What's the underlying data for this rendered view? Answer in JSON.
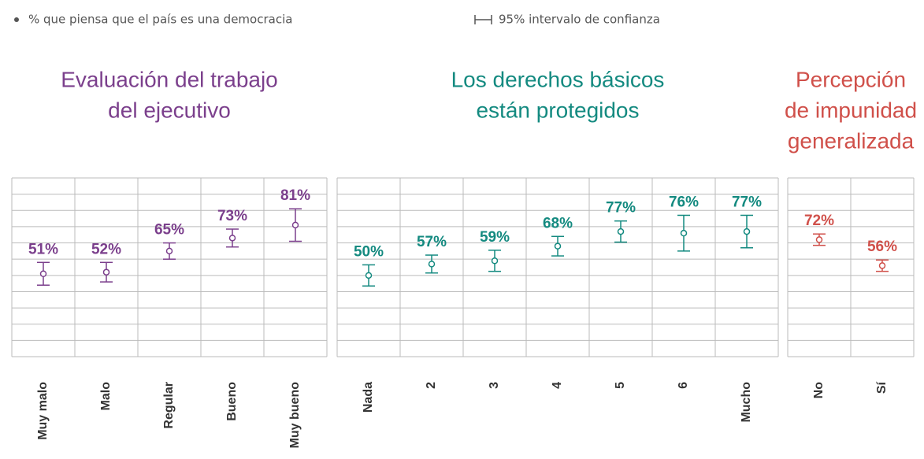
{
  "legend": {
    "point": "% que piensa que el país es una democracia",
    "interval": "95% intervalo de confianza"
  },
  "chart_data": [
    {
      "type": "errorbar",
      "title": [
        "Evaluación del trabajo",
        "del ejecutivo"
      ],
      "color": "#7b3f8c",
      "categories": [
        "Muy malo",
        "Malo",
        "Regular",
        "Bueno",
        "Muy bueno"
      ],
      "values": [
        51,
        52,
        65,
        73,
        81
      ],
      "errors": [
        7,
        6,
        5,
        5.5,
        10
      ],
      "value_labels": [
        "51%",
        "52%",
        "65%",
        "73%",
        "81%"
      ],
      "ylim": [
        0,
        110
      ],
      "yticks": [
        0,
        10,
        20,
        30,
        40,
        50,
        60,
        70,
        80,
        90,
        100,
        110
      ],
      "grid": true
    },
    {
      "type": "errorbar",
      "title": [
        "Los derechos básicos",
        "están protegidos"
      ],
      "color": "#148a80",
      "categories": [
        "Nada",
        "2",
        "3",
        "4",
        "5",
        "6",
        "Mucho"
      ],
      "values": [
        50,
        57,
        59,
        68,
        77,
        76,
        77
      ],
      "errors": [
        6.5,
        5.5,
        6.5,
        6,
        6.5,
        11,
        10
      ],
      "value_labels": [
        "50%",
        "57%",
        "59%",
        "68%",
        "77%",
        "76%",
        "77%"
      ],
      "ylim": [
        0,
        110
      ],
      "yticks": [
        0,
        10,
        20,
        30,
        40,
        50,
        60,
        70,
        80,
        90,
        100,
        110
      ],
      "grid": true
    },
    {
      "type": "errorbar",
      "title": [
        "Percepción",
        "de impunidad",
        "generalizada"
      ],
      "color": "#d0504a",
      "categories": [
        "No",
        "Sí"
      ],
      "values": [
        72,
        56
      ],
      "errors": [
        3.5,
        3.5
      ],
      "value_labels": [
        "72%",
        "56%"
      ],
      "ylim": [
        0,
        110
      ],
      "yticks": [
        0,
        10,
        20,
        30,
        40,
        50,
        60,
        70,
        80,
        90,
        100,
        110
      ],
      "grid": true
    }
  ]
}
